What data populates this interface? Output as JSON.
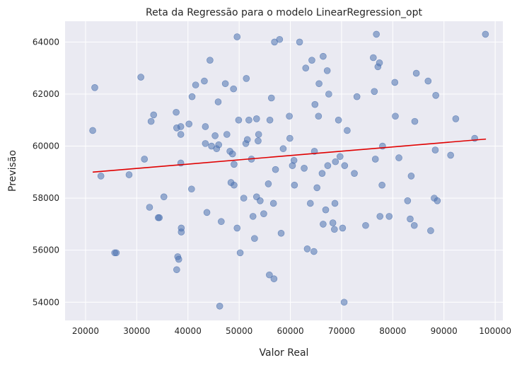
{
  "chart_data": {
    "type": "scatter",
    "title": "Reta da Regressão para o modelo LinearRegression_opt",
    "xlabel": "Valor Real",
    "ylabel": "Previsão",
    "xlim": [
      16000,
      101500
    ],
    "ylim": [
      53300,
      64800
    ],
    "xticks": [
      20000,
      30000,
      40000,
      50000,
      60000,
      70000,
      80000,
      90000,
      100000
    ],
    "yticks": [
      54000,
      56000,
      58000,
      60000,
      62000,
      64000
    ],
    "grid": true,
    "colors": {
      "background": "#eaeaf2",
      "grid": "#ffffff",
      "points": "#4c72b0",
      "line": "#e00000"
    },
    "regression_line": {
      "x": [
        21400,
        98200
      ],
      "y": [
        59000,
        60270
      ]
    },
    "points": [
      [
        21400,
        60600
      ],
      [
        21800,
        62250
      ],
      [
        23000,
        58850
      ],
      [
        25700,
        55900
      ],
      [
        26000,
        55900
      ],
      [
        28500,
        58900
      ],
      [
        30800,
        62650
      ],
      [
        31500,
        59500
      ],
      [
        32500,
        57650
      ],
      [
        32800,
        60950
      ],
      [
        33300,
        61200
      ],
      [
        34200,
        57250
      ],
      [
        34400,
        57250
      ],
      [
        35300,
        58050
      ],
      [
        37700,
        61300
      ],
      [
        37800,
        60700
      ],
      [
        37800,
        55250
      ],
      [
        38000,
        55750
      ],
      [
        38200,
        55650
      ],
      [
        38600,
        60750
      ],
      [
        38600,
        60450
      ],
      [
        38600,
        59350
      ],
      [
        38700,
        56850
      ],
      [
        38700,
        56700
      ],
      [
        40200,
        60850
      ],
      [
        40700,
        58350
      ],
      [
        40800,
        61900
      ],
      [
        41500,
        62350
      ],
      [
        43200,
        62500
      ],
      [
        43400,
        60750
      ],
      [
        43400,
        60100
      ],
      [
        43700,
        57450
      ],
      [
        44300,
        63300
      ],
      [
        44600,
        60000
      ],
      [
        45300,
        60400
      ],
      [
        45600,
        59900
      ],
      [
        45900,
        61700
      ],
      [
        46000,
        60050
      ],
      [
        46200,
        53850
      ],
      [
        46500,
        57100
      ],
      [
        47300,
        62400
      ],
      [
        47600,
        60450
      ],
      [
        48200,
        59800
      ],
      [
        48400,
        58600
      ],
      [
        48700,
        59700
      ],
      [
        48900,
        62200
      ],
      [
        49000,
        58500
      ],
      [
        49000,
        59300
      ],
      [
        49600,
        56850
      ],
      [
        49600,
        64200
      ],
      [
        49900,
        61000
      ],
      [
        50200,
        55900
      ],
      [
        50900,
        58000
      ],
      [
        51300,
        60100
      ],
      [
        51400,
        62600
      ],
      [
        51600,
        60250
      ],
      [
        51900,
        61000
      ],
      [
        52400,
        59500
      ],
      [
        52700,
        57300
      ],
      [
        53000,
        56450
      ],
      [
        53400,
        58050
      ],
      [
        53400,
        61050
      ],
      [
        53700,
        60200
      ],
      [
        53800,
        60450
      ],
      [
        54100,
        57900
      ],
      [
        54800,
        57400
      ],
      [
        55700,
        58550
      ],
      [
        55900,
        55050
      ],
      [
        56000,
        61000
      ],
      [
        56300,
        61850
      ],
      [
        56700,
        57800
      ],
      [
        56800,
        54900
      ],
      [
        56900,
        64000
      ],
      [
        57100,
        59100
      ],
      [
        57900,
        64100
      ],
      [
        58200,
        56650
      ],
      [
        58600,
        59900
      ],
      [
        59800,
        61150
      ],
      [
        59900,
        60300
      ],
      [
        60400,
        59250
      ],
      [
        60700,
        59450
      ],
      [
        60800,
        58500
      ],
      [
        61800,
        64000
      ],
      [
        62700,
        59150
      ],
      [
        63000,
        63000
      ],
      [
        63300,
        56050
      ],
      [
        63900,
        57800
      ],
      [
        64200,
        63300
      ],
      [
        64600,
        55950
      ],
      [
        64700,
        59800
      ],
      [
        64800,
        61600
      ],
      [
        65200,
        58400
      ],
      [
        65500,
        61150
      ],
      [
        65600,
        62400
      ],
      [
        66200,
        58950
      ],
      [
        66400,
        63450
      ],
      [
        66400,
        57000
      ],
      [
        66900,
        57550
      ],
      [
        67300,
        59250
      ],
      [
        67500,
        62000
      ],
      [
        67200,
        62900
      ],
      [
        68300,
        57050
      ],
      [
        68600,
        56800
      ],
      [
        68700,
        57800
      ],
      [
        68800,
        59400
      ],
      [
        69400,
        61000
      ],
      [
        69700,
        59600
      ],
      [
        70200,
        56850
      ],
      [
        70500,
        54000
      ],
      [
        70600,
        59250
      ],
      [
        71100,
        60600
      ],
      [
        72500,
        58950
      ],
      [
        73000,
        61900
      ],
      [
        74700,
        56950
      ],
      [
        76200,
        63400
      ],
      [
        76400,
        62100
      ],
      [
        76600,
        59500
      ],
      [
        76800,
        64300
      ],
      [
        77100,
        63050
      ],
      [
        77400,
        63200
      ],
      [
        77500,
        57300
      ],
      [
        78000,
        60000
      ],
      [
        77900,
        58500
      ],
      [
        79300,
        57300
      ],
      [
        80400,
        62450
      ],
      [
        80500,
        61150
      ],
      [
        81200,
        59550
      ],
      [
        82900,
        57900
      ],
      [
        83400,
        57200
      ],
      [
        83600,
        58850
      ],
      [
        84200,
        56950
      ],
      [
        84300,
        60950
      ],
      [
        84600,
        62800
      ],
      [
        86900,
        62500
      ],
      [
        87400,
        56750
      ],
      [
        88100,
        58000
      ],
      [
        88300,
        59850
      ],
      [
        88400,
        61950
      ],
      [
        88700,
        57900
      ],
      [
        91300,
        59650
      ],
      [
        92300,
        61050
      ],
      [
        96000,
        60300
      ],
      [
        98100,
        64300
      ]
    ]
  }
}
